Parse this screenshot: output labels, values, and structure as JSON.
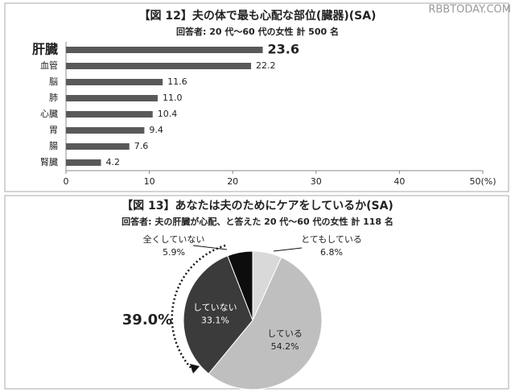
{
  "watermark": "RBBTODAY.COM",
  "chart_data": [
    {
      "type": "hbar",
      "title": "【図 12】夫の体で最も心配な部位(臓器)(SA)",
      "subtitle": "回答者: 20 代～60 代の女性 計 500 名",
      "categories": [
        "肝臓",
        "血管",
        "脳",
        "肺",
        "心臓",
        "胃",
        "腸",
        "腎臓"
      ],
      "values": [
        23.6,
        22.2,
        11.6,
        11.0,
        10.4,
        9.4,
        7.6,
        4.2
      ],
      "value_labels": [
        "23.6",
        "22.2",
        "11.6",
        "11.0",
        "10.4",
        "9.4",
        "7.6",
        "4.2"
      ],
      "color": "#595959",
      "xlim": [
        0,
        50
      ],
      "xticks": [
        0,
        10,
        20,
        30,
        40,
        {
          "value": 50,
          "label": "50(%)"
        }
      ]
    },
    {
      "type": "pie",
      "title": "【図 13】あなたは夫のためにケアをしているか(SA)",
      "subtitle": "回答者: 夫の肝臓が心配、と答えた 20 代～60 代の女性 計 118 名",
      "categories": [
        "とてもしている",
        "している",
        "していない",
        "全くしていない"
      ],
      "values": [
        6.8,
        54.2,
        33.1,
        5.9
      ],
      "value_labels": [
        "6.8%",
        "54.2%",
        "33.1%",
        "5.9%"
      ],
      "colors": [
        "#d9d9d9",
        "#bfbfbf",
        "#3b3b3b",
        "#0d0d0d"
      ],
      "annotation": "39.0%"
    }
  ]
}
